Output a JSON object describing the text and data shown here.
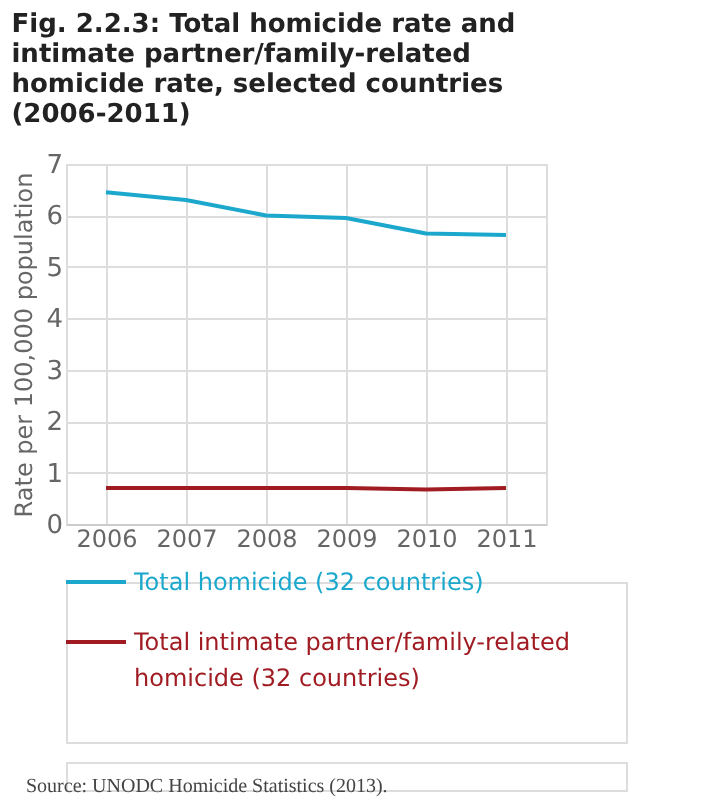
{
  "chart_data": {
    "type": "line",
    "title": "Fig. 2.2.3: Total homicide rate and intimate partner/family-related homicide rate, selected countries (2006-2011)",
    "ylabel": "Rate per 100,000 population",
    "categories": [
      "2006",
      "2007",
      "2008",
      "2009",
      "2010",
      "2011"
    ],
    "series": [
      {
        "name": "Total homicide (32 countries)",
        "color": "#1ba8cc",
        "values": [
          6.45,
          6.3,
          6.0,
          5.95,
          5.65,
          5.62
        ]
      },
      {
        "name": "Total intimate partner/family-related homicide (32 countries)",
        "color": "#a01c22",
        "values": [
          0.7,
          0.7,
          0.7,
          0.7,
          0.67,
          0.7
        ]
      }
    ],
    "ylim": [
      0,
      7
    ],
    "yticks": [
      0,
      1,
      2,
      3,
      4,
      5,
      6,
      7
    ],
    "grid": true,
    "legend": "bottom",
    "marker": "none",
    "line_style": "solid",
    "annotations": [
      "Source: UNODC Homicide Statistics (2013)."
    ]
  }
}
